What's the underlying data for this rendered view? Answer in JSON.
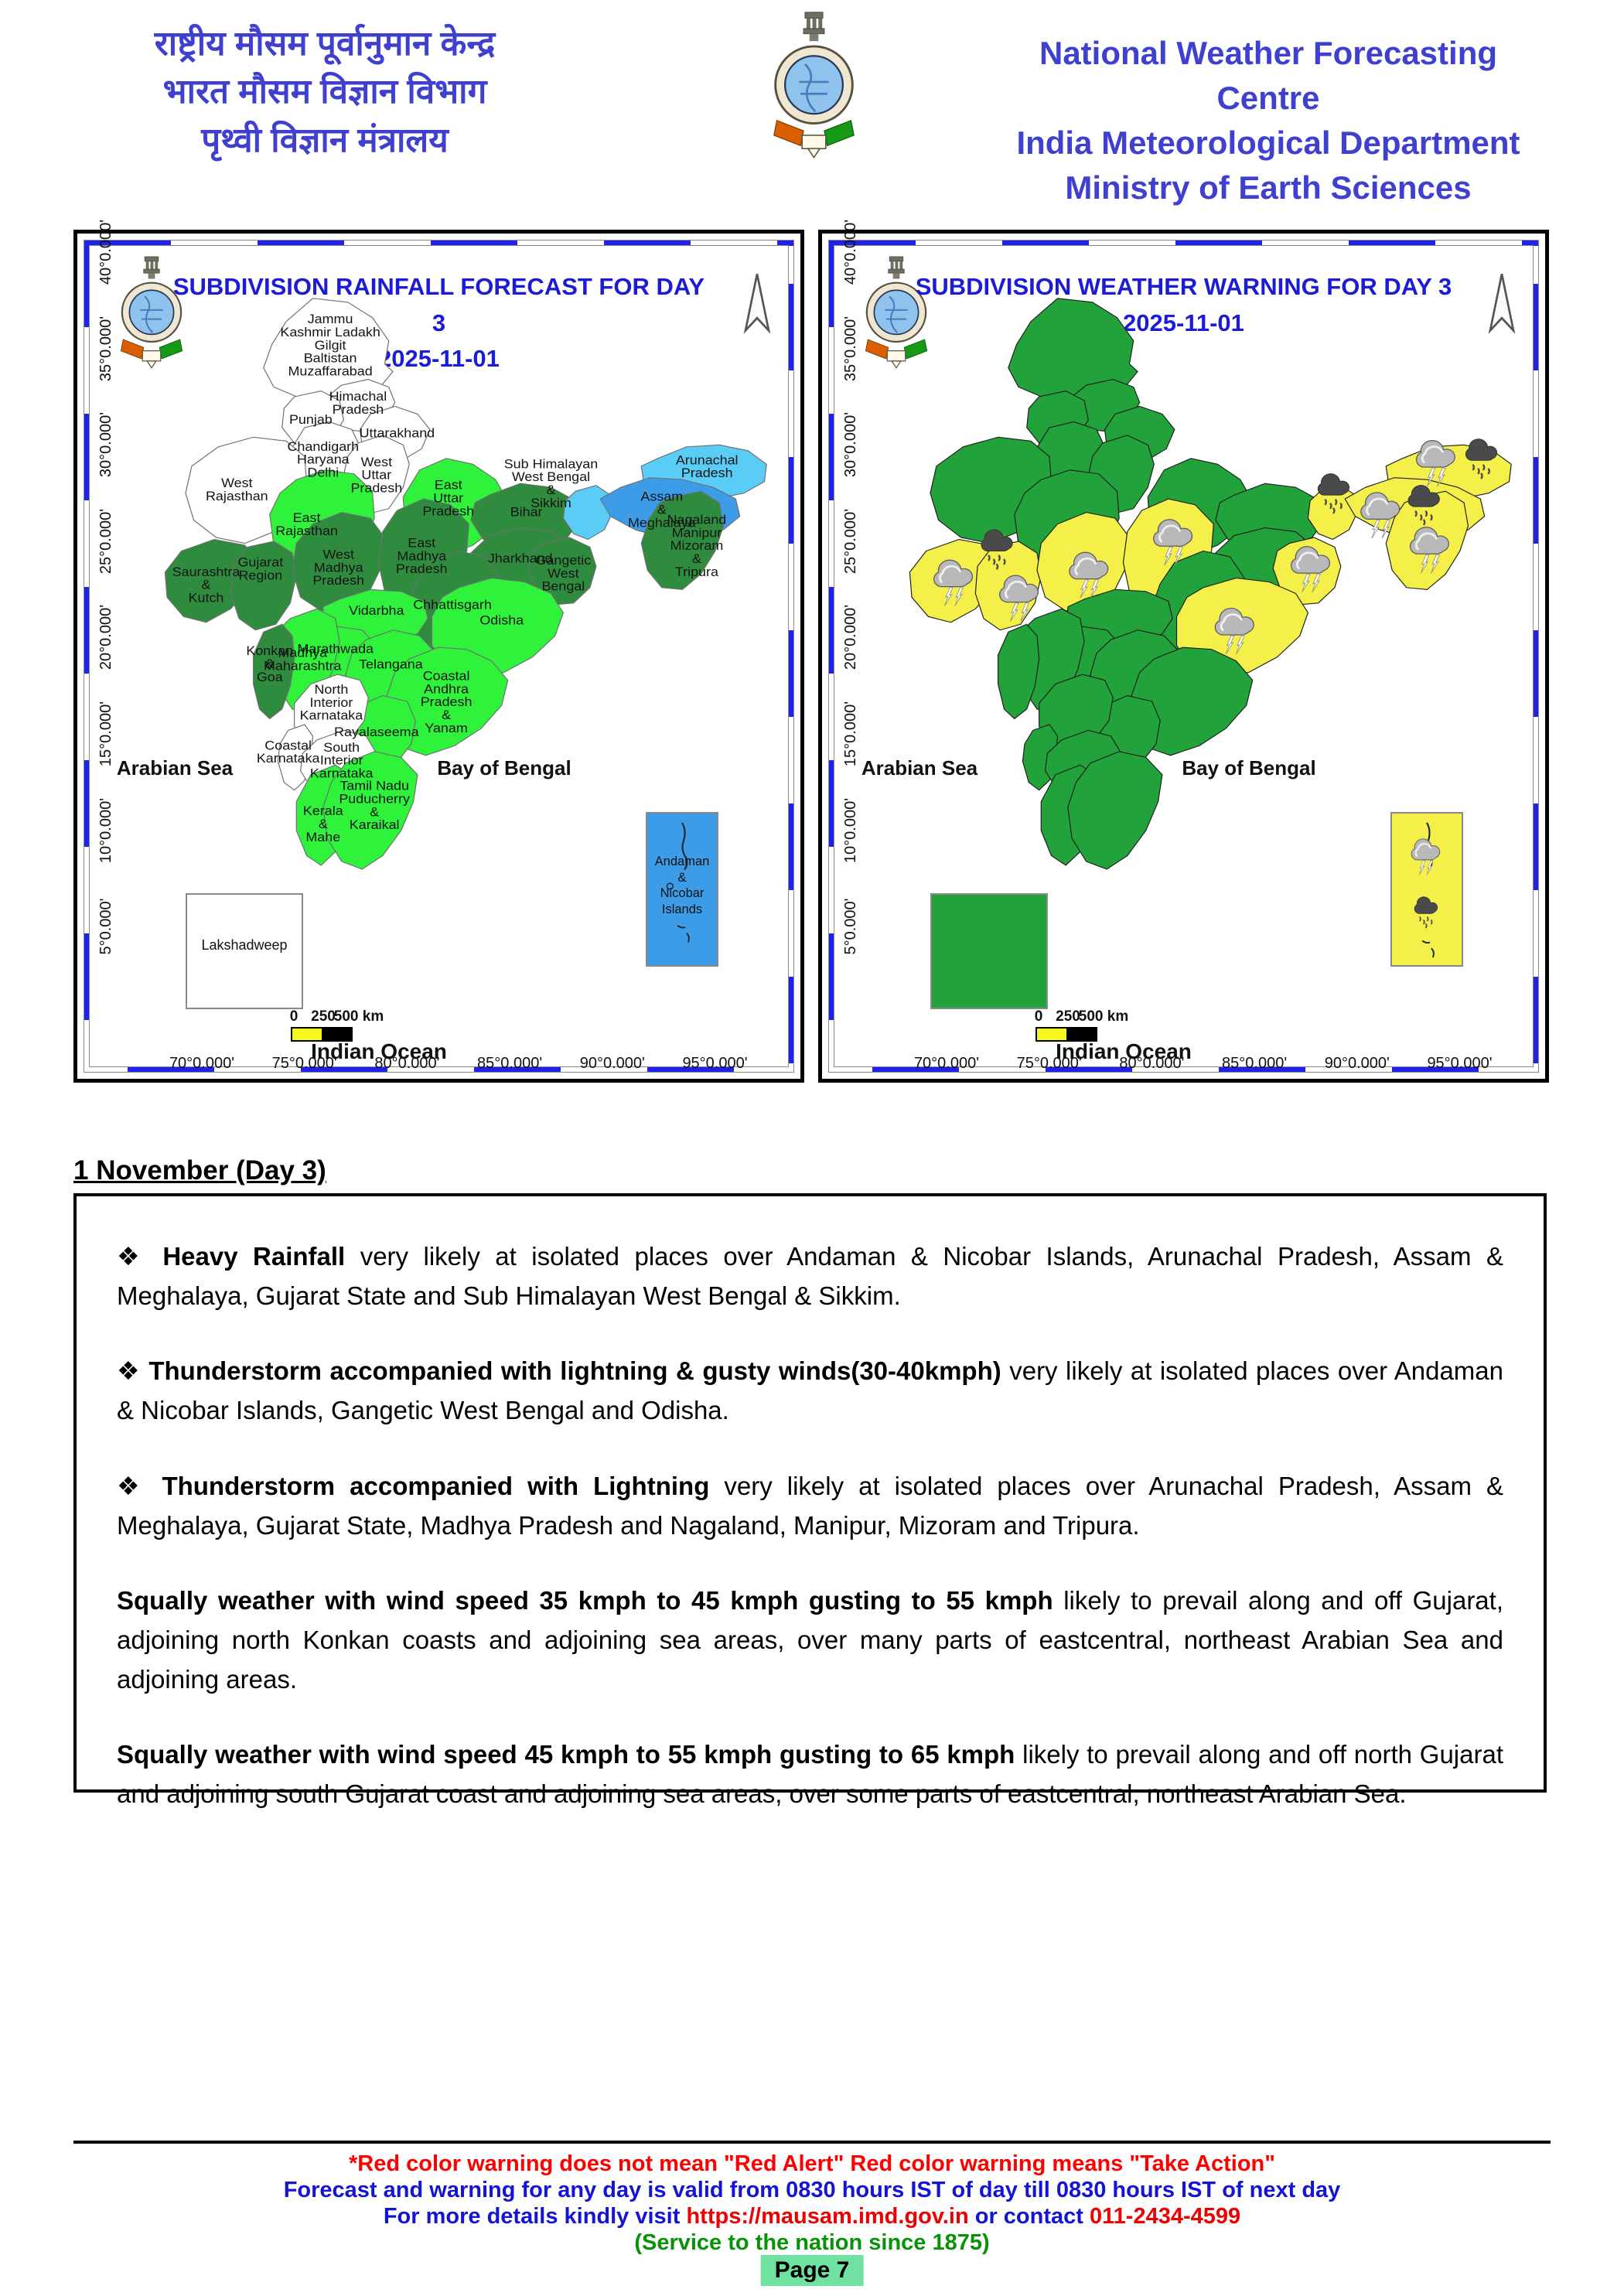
{
  "header": {
    "hindi_lines": [
      "राष्ट्रीय मौसम पूर्वानुमान केन्द्र",
      "भारत मौसम विज्ञान विभाग",
      "पृथ्वी विज्ञान मंत्रालय"
    ],
    "english_lines": [
      "National Weather Forecasting Centre",
      "India Meteorological Department",
      "Ministry of Earth Sciences"
    ]
  },
  "palette": {
    "white": "#ffffff",
    "light": "#2ff23b",
    "dark": "#2f8c3e",
    "cyan": "#59cdf5",
    "blue": "#3d9ce8",
    "green": "#22a23a",
    "yellow": "#f4ef49",
    "title_blue": "#1b1bd8"
  },
  "maps": {
    "left": {
      "title": "SUBDIVISION RAINFALL FORECAST FOR DAY 3",
      "date": "2025-11-01"
    },
    "right": {
      "title": "SUBDIVISION WEATHER WARNING FOR DAY 3",
      "date": "2025-11-01"
    },
    "x_axis": [
      "70°0.000'",
      "75°0.000'",
      "80°0.000'",
      "85°0.000'",
      "90°0.000'",
      "95°0.000'"
    ],
    "y_axis": [
      "40°0.000'",
      "35°0.000'",
      "30°0.000'",
      "25°0.000'",
      "20°0.000'",
      "15°0.000'",
      "10°0.000'",
      "5°0.000'"
    ],
    "sea_labels": {
      "arabian": "Arabian Sea",
      "bay": "Bay of Bengal",
      "ocean": "Indian Ocean"
    },
    "scale": {
      "t0": "0",
      "t250": "250",
      "t500": "500 km"
    },
    "inset": {
      "lakshadweep_label": "Lakshadweep",
      "andaman_label": [
        "Andaman",
        "&",
        "Nicobar",
        "Islands"
      ]
    },
    "regions": [
      {
        "id": "jammu",
        "name": "Jammu Kashmir Ladakh Gilgit Baltistan Muzaffarabad",
        "label_lines": [
          "Jammu",
          "Kashmir Ladakh",
          "Gilgit",
          "Baltistan",
          "Muzaffarabad"
        ],
        "rainfall_fill": "white",
        "warning_fill": "green"
      },
      {
        "id": "himachal",
        "name": "Himachal Pradesh",
        "label_lines": [
          "Himachal",
          "Pradesh"
        ],
        "rainfall_fill": "white",
        "warning_fill": "green"
      },
      {
        "id": "punjab",
        "name": "Punjab",
        "label_lines": [
          "Punjab"
        ],
        "rainfall_fill": "white",
        "warning_fill": "green"
      },
      {
        "id": "uttarakhand",
        "name": "Uttarakhand",
        "label_lines": [
          "Uttarakhand"
        ],
        "rainfall_fill": "white",
        "warning_fill": "green"
      },
      {
        "id": "chandigarh",
        "name": "Chandigarh Haryana Delhi",
        "label_lines": [
          "Chandigarh",
          "Haryana",
          "Delhi"
        ],
        "rainfall_fill": "white",
        "warning_fill": "green"
      },
      {
        "id": "west_up",
        "name": "West Uttar Pradesh",
        "label_lines": [
          "West",
          "Uttar",
          "Pradesh"
        ],
        "rainfall_fill": "white",
        "warning_fill": "green"
      },
      {
        "id": "east_up",
        "name": "East Uttar Pradesh",
        "label_lines": [
          "East",
          "Uttar",
          "Pradesh"
        ],
        "rainfall_fill": "light",
        "warning_fill": "green"
      },
      {
        "id": "west_rajasthan",
        "name": "West Rajasthan",
        "label_lines": [
          "West",
          "Rajasthan"
        ],
        "rainfall_fill": "white",
        "warning_fill": "green"
      },
      {
        "id": "east_rajasthan",
        "name": "East Rajasthan",
        "label_lines": [
          "East",
          "Rajasthan"
        ],
        "rainfall_fill": "light",
        "warning_fill": "green"
      },
      {
        "id": "saurashtra_kutch",
        "name": "Saurashtra & Kutch",
        "label_lines": [
          "Saurashtra",
          "&",
          "Kutch"
        ],
        "rainfall_fill": "dark",
        "warning_fill": "yellow"
      },
      {
        "id": "gujarat_region",
        "name": "Gujarat Region",
        "label_lines": [
          "Gujarat",
          "Region"
        ],
        "rainfall_fill": "dark",
        "warning_fill": "yellow"
      },
      {
        "id": "west_mp",
        "name": "West Madhya Pradesh",
        "label_lines": [
          "West",
          "Madhya",
          "Pradesh"
        ],
        "rainfall_fill": "dark",
        "warning_fill": "yellow"
      },
      {
        "id": "east_mp",
        "name": "East Madhya Pradesh",
        "label_lines": [
          "East",
          "Madhya",
          "Pradesh"
        ],
        "rainfall_fill": "dark",
        "warning_fill": "yellow"
      },
      {
        "id": "bihar",
        "name": "Bihar",
        "label_lines": [
          "Bihar"
        ],
        "rainfall_fill": "dark",
        "warning_fill": "green"
      },
      {
        "id": "jharkhand",
        "name": "Jharkhand",
        "label_lines": [
          "Jharkhand"
        ],
        "rainfall_fill": "dark",
        "warning_fill": "green"
      },
      {
        "id": "gangetic_wb",
        "name": "Gangetic West Bengal",
        "label_lines": [
          "Gangetic",
          "West",
          "Bengal"
        ],
        "rainfall_fill": "dark",
        "warning_fill": "yellow"
      },
      {
        "id": "sub_him_wb",
        "name": "Sub Himalayan West Bengal & Sikkim",
        "label_lines": [
          "Sub Himalayan",
          "West Bengal",
          "&",
          "Sikkim"
        ],
        "rainfall_fill": "cyan",
        "warning_fill": "yellow"
      },
      {
        "id": "arunachal",
        "name": "Arunachal Pradesh",
        "label_lines": [
          "Arunachal",
          "Pradesh"
        ],
        "rainfall_fill": "cyan",
        "warning_fill": "yellow"
      },
      {
        "id": "assam_meghalaya",
        "name": "Assam & Meghalaya",
        "label_lines": [
          "Assam",
          "&",
          "Meghalaya"
        ],
        "rainfall_fill": "blue",
        "warning_fill": "yellow"
      },
      {
        "id": "nmmt",
        "name": "Nagaland Manipur Mizoram & Tripura",
        "label_lines": [
          "Nagaland",
          "Manipur",
          "Mizoram",
          "&",
          "Tripura"
        ],
        "rainfall_fill": "dark",
        "warning_fill": "yellow"
      },
      {
        "id": "chhattisgarh",
        "name": "Chhattisgarh",
        "label_lines": [
          "Chhattisgarh"
        ],
        "rainfall_fill": "dark",
        "warning_fill": "green"
      },
      {
        "id": "odisha",
        "name": "Odisha",
        "label_lines": [
          "Odisha"
        ],
        "rainfall_fill": "light",
        "warning_fill": "yellow"
      },
      {
        "id": "vidarbha",
        "name": "Vidarbha",
        "label_lines": [
          "Vidarbha"
        ],
        "rainfall_fill": "light",
        "warning_fill": "green"
      },
      {
        "id": "marathwada",
        "name": "Marathwada",
        "label_lines": [
          "Marathwada"
        ],
        "rainfall_fill": "light",
        "warning_fill": "green"
      },
      {
        "id": "madhya_maharashtra",
        "name": "Madhya Maharashtra",
        "label_lines": [
          "Madhya",
          "Maharashtra"
        ],
        "rainfall_fill": "light",
        "warning_fill": "green"
      },
      {
        "id": "konkan_goa",
        "name": "Konkan & Goa",
        "label_lines": [
          "Konkan",
          "&",
          "Goa"
        ],
        "rainfall_fill": "dark",
        "warning_fill": "green"
      },
      {
        "id": "telangana",
        "name": "Telangana",
        "label_lines": [
          "Telangana"
        ],
        "rainfall_fill": "light",
        "warning_fill": "green"
      },
      {
        "id": "coastal_ap",
        "name": "Coastal Andhra Pradesh & Yanam",
        "label_lines": [
          "Coastal",
          "Andhra",
          "Pradesh",
          "&",
          "Yanam"
        ],
        "rainfall_fill": "light",
        "warning_fill": "green"
      },
      {
        "id": "rayalaseema",
        "name": "Rayalaseema",
        "label_lines": [
          "Rayalaseema"
        ],
        "rainfall_fill": "light",
        "warning_fill": "green"
      },
      {
        "id": "north_interior_karnataka",
        "name": "North Interior Karnataka",
        "label_lines": [
          "North",
          "Interior",
          "Karnataka"
        ],
        "rainfall_fill": "white",
        "warning_fill": "green"
      },
      {
        "id": "coastal_karnataka",
        "name": "Coastal Karnataka",
        "label_lines": [
          "Coastal",
          "Karnataka"
        ],
        "rainfall_fill": "white",
        "warning_fill": "green"
      },
      {
        "id": "south_interior_karnataka",
        "name": "South Interior Karnataka",
        "label_lines": [
          "South",
          "Interior",
          "Karnataka"
        ],
        "rainfall_fill": "white",
        "warning_fill": "green"
      },
      {
        "id": "kerala_mahe",
        "name": "Kerala & Mahe",
        "label_lines": [
          "Kerala",
          "&",
          "Mahe"
        ],
        "rainfall_fill": "light",
        "warning_fill": "green"
      },
      {
        "id": "tamil_nadu",
        "name": "Tamil Nadu Puducherry & Karaikal",
        "label_lines": [
          "Tamil Nadu",
          "Puducherry",
          "&",
          "Karaikal"
        ],
        "rainfall_fill": "light",
        "warning_fill": "green"
      }
    ],
    "inset_fills": {
      "lakshadweep_rainfall": "white",
      "lakshadweep_warning": "green",
      "andaman_rainfall": "blue",
      "andaman_warning": "yellow"
    },
    "warning_icons": [
      {
        "icon": "thunderstorm",
        "region": "saurashtra_kutch"
      },
      {
        "icon": "heavy-rain",
        "region": "gujarat_region"
      },
      {
        "icon": "thunderstorm",
        "region": "gujarat_region"
      },
      {
        "icon": "thunderstorm",
        "region": "west_mp"
      },
      {
        "icon": "thunderstorm",
        "region": "east_mp"
      },
      {
        "icon": "thunderstorm",
        "region": "odisha"
      },
      {
        "icon": "thunderstorm",
        "region": "gangetic_wb"
      },
      {
        "icon": "heavy-rain",
        "region": "sub_him_wb"
      },
      {
        "icon": "thunderstorm",
        "region": "assam_meghalaya"
      },
      {
        "icon": "heavy-rain",
        "region": "assam_meghalaya"
      },
      {
        "icon": "thunderstorm",
        "region": "nmmt"
      },
      {
        "icon": "thunderstorm",
        "region": "arunachal"
      },
      {
        "icon": "heavy-rain",
        "region": "arunachal"
      },
      {
        "icon": "thunderstorm",
        "region": "andaman_inset"
      },
      {
        "icon": "heavy-rain",
        "region": "andaman_inset"
      }
    ]
  },
  "report": {
    "heading": "1 November (Day 3)",
    "items": [
      {
        "bullet": "❖",
        "bold": "Heavy Rainfall",
        "rest": " very likely at isolated places over Andaman & Nicobar Islands, Arunachal Pradesh, Assam & Meghalaya, Gujarat State and Sub Himalayan West Bengal & Sikkim."
      },
      {
        "bullet": "❖",
        "bold": "Thunderstorm accompanied with lightning & gusty winds(30-40kmph)",
        "rest": " very likely at isolated places over Andaman & Nicobar Islands, Gangetic West Bengal and Odisha."
      },
      {
        "bullet": "❖",
        "bold": "Thunderstorm accompanied with Lightning",
        "rest": " very likely at isolated places over Arunachal Pradesh, Assam & Meghalaya, Gujarat State, Madhya Pradesh and Nagaland, Manipur, Mizoram and Tripura."
      },
      {
        "bullet": "",
        "bold": "Squally weather with wind speed 35 kmph to 45 kmph gusting to 55 kmph",
        "rest": " likely to prevail along and off Gujarat, adjoining north Konkan coasts and adjoining sea areas, over many parts of eastcentral, northeast Arabian Sea and adjoining areas."
      },
      {
        "bullet": "",
        "bold": "Squally weather with wind speed 45 kmph to 55 kmph gusting to 65 kmph",
        "rest": " likely to prevail along and off north Gujarat and adjoining south Gujarat coast and adjoining sea areas, over some parts of eastcentral, northeast Arabian Sea."
      }
    ]
  },
  "footer": {
    "line1": "*Red color warning does not mean \"Red Alert\" Red color warning means \"Take Action\"",
    "line2": "Forecast and warning for any day is valid from 0830 hours IST of day till 0830 hours IST of next day",
    "line3_pre": "For more details kindly visit ",
    "line3_url": "https://mausam.imd.gov.in",
    "line3_mid": " or contact ",
    "line3_phone": "011-2434-4599",
    "line4": "(Service to the nation since 1875)",
    "page_label": "Page 7"
  }
}
